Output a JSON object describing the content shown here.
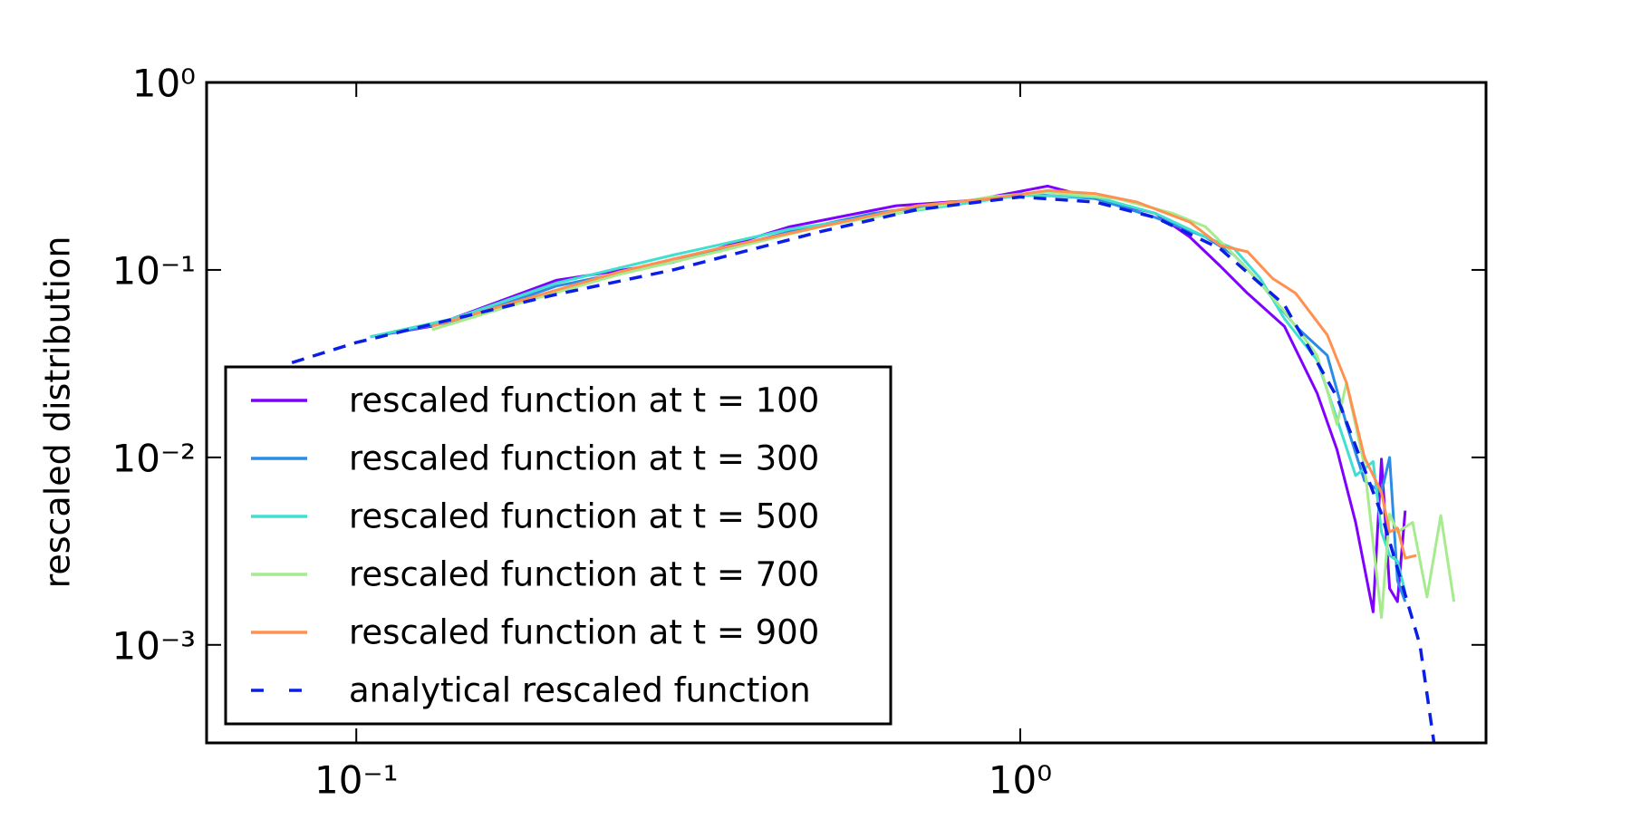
{
  "chart_data": {
    "type": "line",
    "y_label": "rescaled distribution",
    "xscale": "log",
    "yscale": "log",
    "xlim": [
      0.0595,
      5.03
    ],
    "ylim": [
      0.0003,
      1
    ],
    "xticks": [
      {
        "value": 0.1,
        "label": "10⁻¹"
      },
      {
        "value": 1,
        "label": "10⁰"
      }
    ],
    "yticks": [
      {
        "value": 0.001,
        "label": "10⁻³"
      },
      {
        "value": 0.01,
        "label": "10⁻²"
      },
      {
        "value": 0.1,
        "label": "10⁻¹"
      },
      {
        "value": 1,
        "label": "10⁰"
      }
    ],
    "legend": "lower left",
    "series": [
      {
        "name": "rescaled function at t = 100",
        "color": "#8000ff",
        "x": [
          0.105,
          0.13,
          0.2,
          0.3,
          0.45,
          0.65,
          0.85,
          1.1,
          1.3,
          1.6,
          1.8,
          2.0,
          2.2,
          2.5,
          2.8,
          3.0,
          3.2,
          3.4,
          3.5,
          3.6,
          3.7,
          3.8
        ],
        "values": [
          0.044,
          0.05,
          0.088,
          0.11,
          0.17,
          0.22,
          0.235,
          0.28,
          0.24,
          0.2,
          0.15,
          0.105,
          0.075,
          0.05,
          0.022,
          0.011,
          0.0045,
          0.0015,
          0.0098,
          0.002,
          0.0017,
          0.0052
        ]
      },
      {
        "name": "rescaled function at t = 300",
        "color": "#2a8ce6",
        "x": [
          0.105,
          0.14,
          0.2,
          0.3,
          0.45,
          0.6,
          0.8,
          1.0,
          1.3,
          1.6,
          1.9,
          2.1,
          2.3,
          2.6,
          2.9,
          3.1,
          3.3,
          3.5,
          3.6,
          3.7,
          3.8
        ],
        "values": [
          0.044,
          0.053,
          0.082,
          0.11,
          0.16,
          0.2,
          0.23,
          0.255,
          0.24,
          0.19,
          0.15,
          0.12,
          0.085,
          0.05,
          0.035,
          0.015,
          0.0075,
          0.0065,
          0.01,
          0.0022,
          0.0017
        ]
      },
      {
        "name": "rescaled function at t = 500",
        "color": "#40e0d0",
        "x": [
          0.105,
          0.14,
          0.2,
          0.3,
          0.45,
          0.65,
          0.85,
          1.0,
          1.3,
          1.6,
          1.9,
          2.1,
          2.3,
          2.5,
          2.8,
          3.0,
          3.2,
          3.4,
          3.5,
          3.6,
          3.7,
          3.8
        ],
        "values": [
          0.044,
          0.055,
          0.085,
          0.12,
          0.165,
          0.2,
          0.23,
          0.25,
          0.245,
          0.2,
          0.15,
          0.13,
          0.09,
          0.055,
          0.033,
          0.016,
          0.008,
          0.0095,
          0.004,
          0.003,
          0.0028,
          0.0019
        ]
      },
      {
        "name": "rescaled function at t = 700",
        "color": "#a6ec8e",
        "x": [
          0.13,
          0.18,
          0.25,
          0.35,
          0.5,
          0.7,
          0.9,
          1.1,
          1.4,
          1.7,
          1.9,
          2.1,
          2.3,
          2.5,
          2.8,
          3.0,
          3.1,
          3.3,
          3.5,
          3.6,
          3.7,
          3.9,
          4.1,
          4.3,
          4.5
        ],
        "values": [
          0.048,
          0.068,
          0.095,
          0.125,
          0.17,
          0.21,
          0.245,
          0.26,
          0.24,
          0.2,
          0.17,
          0.12,
          0.085,
          0.06,
          0.035,
          0.015,
          0.025,
          0.009,
          0.0014,
          0.005,
          0.004,
          0.0045,
          0.0018,
          0.0049,
          0.0017
        ]
      },
      {
        "name": "rescaled function at t = 900",
        "color": "#ff9050",
        "x": [
          0.13,
          0.18,
          0.25,
          0.35,
          0.5,
          0.7,
          0.9,
          1.1,
          1.3,
          1.5,
          1.8,
          2.0,
          2.2,
          2.4,
          2.6,
          2.9,
          3.1,
          3.3,
          3.5,
          3.6,
          3.7,
          3.8,
          3.95
        ],
        "values": [
          0.05,
          0.07,
          0.098,
          0.13,
          0.17,
          0.22,
          0.24,
          0.265,
          0.255,
          0.23,
          0.18,
          0.135,
          0.125,
          0.09,
          0.075,
          0.045,
          0.025,
          0.01,
          0.0065,
          0.004,
          0.0042,
          0.0029,
          0.003
        ]
      },
      {
        "name": "analytical rescaled function",
        "color": "#0a1ee6",
        "dash": true,
        "x": [
          0.08,
          0.1,
          0.15,
          0.2,
          0.3,
          0.5,
          0.7,
          1.0,
          1.3,
          1.6,
          2.0,
          2.5,
          3.0,
          3.5,
          4.0,
          4.2
        ],
        "values": [
          0.032,
          0.041,
          0.058,
          0.074,
          0.1,
          0.16,
          0.21,
          0.245,
          0.23,
          0.19,
          0.13,
          0.065,
          0.021,
          0.005,
          0.001,
          0.0003
        ]
      }
    ]
  }
}
